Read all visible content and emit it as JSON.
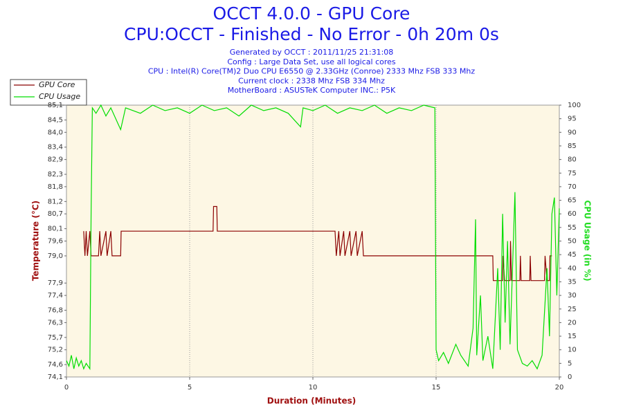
{
  "chart_data": {
    "type": "line",
    "title": "OCCT 4.0.0 - GPU Core",
    "subtitle": "CPU:OCCT - Finished - No Error - 0h 20m 0s",
    "info": [
      "Generated by OCCT : 2011/11/25 21:31:08",
      "Config : Large Data Set, use all logical cores",
      "CPU : Intel(R) Core(TM)2 Duo CPU E6550 @ 2.33GHz (Conroe) 2333 Mhz FSB 333 Mhz",
      "Current clock : 2338 Mhz FSB 334 Mhz",
      "MotherBoard : ASUSTeK Computer INC.: P5K"
    ],
    "xlabel": "Duration (Minutes)",
    "ylabel": "Temperature (°C)",
    "y2label": "CPU Usage (in %)",
    "xlim": [
      0,
      20
    ],
    "xticks": [
      0,
      5,
      10,
      15,
      20
    ],
    "xgrid": true,
    "ylim": [
      74.1,
      85.1
    ],
    "yticks": [
      {
        "value": 74.1,
        "label": "74,1"
      },
      {
        "value": 74.6,
        "label": "74,6"
      },
      {
        "value": 75.2,
        "label": "75,2"
      },
      {
        "value": 75.7,
        "label": "75,7"
      },
      {
        "value": 76.3,
        "label": "76,3"
      },
      {
        "value": 76.8,
        "label": "76,8"
      },
      {
        "value": 77.4,
        "label": "77,4"
      },
      {
        "value": 77.9,
        "label": "77,9"
      },
      {
        "value": 79.0,
        "label": "79,0"
      },
      {
        "value": 79.6,
        "label": "79,6"
      },
      {
        "value": 80.1,
        "label": "80,1"
      },
      {
        "value": 80.7,
        "label": "80,7"
      },
      {
        "value": 81.2,
        "label": "81,2"
      },
      {
        "value": 81.8,
        "label": "81,8"
      },
      {
        "value": 82.3,
        "label": "82,3"
      },
      {
        "value": 82.9,
        "label": "82,9"
      },
      {
        "value": 83.4,
        "label": "83,4"
      },
      {
        "value": 84.0,
        "label": "84,0"
      },
      {
        "value": 84.5,
        "label": "84,5"
      },
      {
        "value": 85.1,
        "label": "85,1"
      }
    ],
    "y2lim": [
      0,
      100
    ],
    "y2ticks": [
      0,
      5,
      10,
      15,
      20,
      25,
      30,
      35,
      40,
      45,
      50,
      55,
      60,
      65,
      70,
      75,
      80,
      85,
      90,
      95,
      100
    ],
    "series": [
      {
        "name": "GPU Core",
        "color": "#8b0000",
        "x": [
          0.7,
          0.75,
          0.8,
          0.85,
          0.95,
          1.0,
          1.3,
          1.35,
          1.4,
          1.6,
          1.65,
          1.8,
          1.85,
          2.2,
          2.22,
          5.95,
          5.97,
          6.1,
          6.12,
          10.9,
          10.95,
          11.05,
          11.1,
          11.25,
          11.3,
          11.5,
          11.55,
          11.75,
          11.8,
          12.0,
          12.05,
          17.3,
          17.32,
          17.7,
          17.72,
          17.78,
          18.0,
          18.02,
          18.06,
          18.4,
          18.42,
          18.45,
          18.8,
          18.82,
          18.85,
          19.4,
          19.42,
          19.5,
          19.6,
          19.62,
          19.7
        ],
        "values": [
          80.0,
          79.0,
          80.0,
          79.0,
          80.0,
          79.0,
          79.0,
          80.0,
          79.0,
          80.0,
          79.0,
          80.0,
          79.0,
          79.0,
          80.0,
          80.0,
          81.0,
          81.0,
          80.0,
          80.0,
          79.0,
          80.0,
          79.0,
          80.0,
          79.0,
          80.0,
          79.0,
          80.0,
          79.0,
          80.0,
          79.0,
          79.0,
          78.0,
          78.0,
          79.0,
          78.0,
          78.0,
          79.6,
          78.0,
          78.0,
          79.0,
          78.0,
          78.0,
          79.0,
          78.0,
          78.0,
          79.0,
          78.0,
          78.0,
          79.0,
          79.0
        ]
      },
      {
        "name": "CPU Usage",
        "color": "#00dd00",
        "axis": "y2",
        "x": [
          0,
          0.1,
          0.2,
          0.3,
          0.4,
          0.5,
          0.6,
          0.7,
          0.8,
          0.95,
          1.0,
          1.05,
          1.2,
          1.4,
          1.6,
          1.8,
          2.2,
          2.4,
          3,
          3.5,
          4,
          4.5,
          5,
          5.5,
          6,
          6.5,
          7,
          7.5,
          8,
          8.5,
          9,
          9.5,
          9.6,
          10,
          10.5,
          11,
          11.5,
          12,
          12.5,
          13,
          13.5,
          14,
          14.5,
          14.95,
          15.0,
          15.1,
          15.3,
          15.5,
          15.8,
          16.0,
          16.3,
          16.5,
          16.6,
          16.65,
          16.8,
          16.9,
          17.1,
          17.3,
          17.5,
          17.6,
          17.7,
          17.8,
          17.9,
          18.0,
          18.1,
          18.2,
          18.3,
          18.5,
          18.7,
          18.9,
          19.1,
          19.3,
          19.5,
          19.6,
          19.7,
          19.8,
          19.9,
          20
        ],
        "values": [
          6,
          4,
          8,
          3,
          7,
          4,
          6,
          3,
          5,
          3,
          60,
          99,
          97,
          100,
          96,
          99,
          91,
          99,
          97,
          100,
          98,
          99,
          97,
          100,
          98,
          99,
          96,
          100,
          98,
          99,
          97,
          92,
          99,
          98,
          100,
          97,
          99,
          98,
          100,
          97,
          99,
          98,
          100,
          99,
          10,
          6,
          9,
          5,
          12,
          8,
          4,
          18,
          58,
          8,
          30,
          6,
          15,
          3,
          40,
          10,
          60,
          20,
          50,
          12,
          40,
          68,
          10,
          5,
          4,
          6,
          3,
          8,
          40,
          15,
          60,
          66,
          30,
          62
        ]
      }
    ]
  }
}
